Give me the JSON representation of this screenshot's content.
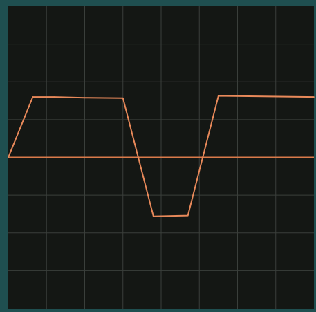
{
  "colors": {
    "frame": "#1f4f50",
    "background": "#141714",
    "grid": "#3a3f3b",
    "trace": "#e8895a",
    "baseline": "#d97a4a"
  },
  "chart_data": {
    "type": "line",
    "title": "",
    "xlabel": "",
    "ylabel": "",
    "grid": true,
    "legend": "none",
    "grid_divisions": {
      "x": 8,
      "y": 8
    },
    "xlim": [
      0,
      8
    ],
    "ylim": [
      -4,
      4
    ],
    "baseline": 0,
    "series": [
      {
        "x": [
          0,
          0.64,
          1.2,
          2.0,
          3.0,
          3.8,
          4.7,
          5.5,
          8.0
        ],
        "y": [
          0,
          1.6,
          1.6,
          1.58,
          1.57,
          -1.56,
          -1.54,
          1.63,
          1.6
        ]
      }
    ]
  }
}
